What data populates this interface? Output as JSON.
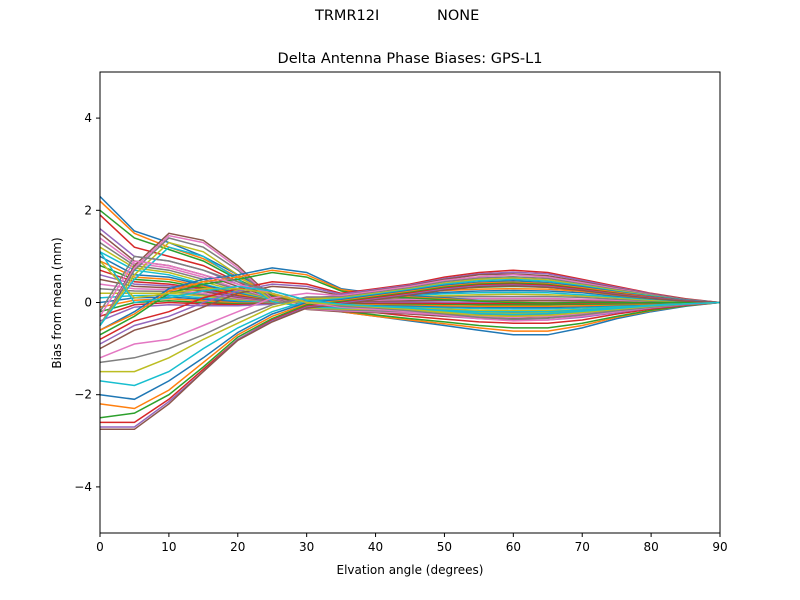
{
  "header": {
    "antenna": "TRMR12I",
    "radome": "NONE"
  },
  "colors": {
    "palette": [
      "#1f77b4",
      "#ff7f0e",
      "#2ca02c",
      "#d62728",
      "#9467bd",
      "#8c564b",
      "#e377c2",
      "#7f7f7f",
      "#bcbd22",
      "#17becf"
    ]
  },
  "chart_data": {
    "type": "line",
    "title": "Delta Antenna Phase Biases: GPS-L1",
    "xlabel": "Elvation angle (degrees)",
    "ylabel": "Bias from mean (mm)",
    "xlim": [
      0,
      90
    ],
    "ylim": [
      -5,
      5
    ],
    "xticks": [
      "0",
      "10",
      "20",
      "30",
      "40",
      "50",
      "60",
      "70",
      "80",
      "90"
    ],
    "yticks": [
      "−4",
      "−2",
      "0",
      "2",
      "4"
    ],
    "grid": false,
    "legend": "none",
    "x": [
      0,
      5,
      10,
      15,
      20,
      25,
      30,
      35,
      40,
      45,
      50,
      55,
      60,
      65,
      70,
      75,
      80,
      85,
      90
    ],
    "series": [
      {
        "values": [
          2.3,
          1.55,
          1.3,
          1.0,
          0.6,
          0.2,
          -0.05,
          -0.2,
          -0.3,
          -0.4,
          -0.5,
          -0.6,
          -0.7,
          -0.7,
          -0.55,
          -0.35,
          -0.2,
          -0.08,
          0.0
        ]
      },
      {
        "values": [
          2.2,
          1.5,
          1.2,
          0.95,
          0.55,
          0.18,
          -0.05,
          -0.2,
          -0.3,
          -0.38,
          -0.46,
          -0.55,
          -0.62,
          -0.62,
          -0.5,
          -0.32,
          -0.18,
          -0.07,
          0.0
        ]
      },
      {
        "values": [
          2.0,
          1.4,
          1.15,
          0.9,
          0.5,
          0.15,
          -0.05,
          -0.18,
          -0.27,
          -0.35,
          -0.42,
          -0.5,
          -0.55,
          -0.55,
          -0.45,
          -0.3,
          -0.17,
          -0.07,
          0.0
        ]
      },
      {
        "values": [
          1.9,
          1.2,
          1.0,
          0.8,
          0.45,
          0.12,
          -0.05,
          -0.15,
          -0.22,
          -0.3,
          -0.36,
          -0.42,
          -0.45,
          -0.45,
          -0.38,
          -0.25,
          -0.14,
          -0.06,
          0.0
        ]
      },
      {
        "values": [
          1.6,
          1.0,
          0.9,
          0.7,
          0.4,
          0.1,
          -0.05,
          -0.12,
          -0.18,
          -0.25,
          -0.3,
          -0.35,
          -0.38,
          -0.38,
          -0.32,
          -0.22,
          -0.12,
          -0.05,
          0.0
        ]
      },
      {
        "values": [
          1.5,
          0.9,
          0.8,
          0.6,
          0.35,
          0.1,
          -0.04,
          -0.1,
          -0.15,
          -0.2,
          -0.25,
          -0.3,
          -0.3,
          -0.3,
          -0.26,
          -0.18,
          -0.1,
          -0.04,
          0.0
        ]
      },
      {
        "values": [
          1.4,
          0.85,
          0.75,
          0.55,
          0.3,
          0.08,
          -0.04,
          -0.08,
          -0.12,
          -0.17,
          -0.2,
          -0.24,
          -0.26,
          -0.26,
          -0.22,
          -0.15,
          -0.08,
          -0.03,
          0.0
        ]
      },
      {
        "values": [
          1.3,
          0.8,
          0.7,
          0.5,
          0.28,
          0.06,
          -0.03,
          -0.06,
          -0.1,
          -0.14,
          -0.17,
          -0.2,
          -0.22,
          -0.22,
          -0.18,
          -0.12,
          -0.07,
          -0.03,
          0.0
        ]
      },
      {
        "values": [
          1.2,
          0.75,
          0.65,
          0.45,
          0.25,
          0.05,
          -0.03,
          -0.05,
          -0.08,
          -0.11,
          -0.14,
          -0.17,
          -0.18,
          -0.18,
          -0.15,
          -0.1,
          -0.06,
          -0.02,
          0.0
        ]
      },
      {
        "values": [
          1.1,
          0.7,
          0.6,
          0.4,
          0.22,
          0.04,
          -0.02,
          -0.04,
          -0.06,
          -0.09,
          -0.11,
          -0.13,
          -0.14,
          -0.14,
          -0.12,
          -0.08,
          -0.05,
          -0.02,
          0.0
        ]
      },
      {
        "values": [
          1.0,
          0.6,
          0.55,
          0.38,
          0.2,
          0.04,
          -0.02,
          -0.03,
          -0.05,
          -0.07,
          -0.09,
          -0.1,
          -0.11,
          -0.11,
          -0.09,
          -0.06,
          -0.04,
          -0.02,
          0.0
        ]
      },
      {
        "values": [
          0.9,
          0.55,
          0.5,
          0.35,
          0.18,
          0.03,
          -0.02,
          -0.02,
          -0.04,
          -0.05,
          -0.07,
          -0.08,
          -0.08,
          -0.08,
          -0.07,
          -0.05,
          -0.03,
          -0.01,
          0.0
        ]
      },
      {
        "values": [
          0.8,
          0.5,
          0.45,
          0.32,
          0.15,
          0.03,
          -0.01,
          -0.01,
          -0.02,
          -0.03,
          -0.04,
          -0.05,
          -0.05,
          -0.05,
          -0.04,
          -0.03,
          -0.02,
          -0.01,
          0.0
        ]
      },
      {
        "values": [
          0.7,
          0.45,
          0.4,
          0.3,
          0.14,
          0.02,
          -0.01,
          0.0,
          -0.01,
          -0.01,
          -0.02,
          -0.02,
          -0.02,
          -0.02,
          -0.02,
          -0.01,
          -0.01,
          0.0,
          0.0
        ]
      },
      {
        "values": [
          0.6,
          0.4,
          0.36,
          0.27,
          0.12,
          0.02,
          0.0,
          0.01,
          0.01,
          0.01,
          0.01,
          0.01,
          0.01,
          0.01,
          0.01,
          0.01,
          0.0,
          0.0,
          0.0
        ]
      },
      {
        "values": [
          0.5,
          0.35,
          0.32,
          0.24,
          0.1,
          0.01,
          0.0,
          0.02,
          0.03,
          0.04,
          0.05,
          0.05,
          0.05,
          0.05,
          0.04,
          0.03,
          0.02,
          0.01,
          0.0
        ]
      },
      {
        "values": [
          0.4,
          0.3,
          0.28,
          0.2,
          0.08,
          0.0,
          0.01,
          0.03,
          0.05,
          0.07,
          0.08,
          0.09,
          0.09,
          0.09,
          0.07,
          0.05,
          0.03,
          0.01,
          0.0
        ]
      },
      {
        "values": [
          0.3,
          0.25,
          0.24,
          0.17,
          0.06,
          0.0,
          0.02,
          0.05,
          0.07,
          0.1,
          0.12,
          0.13,
          0.13,
          0.13,
          0.11,
          0.07,
          0.04,
          0.02,
          0.0
        ]
      },
      {
        "values": [
          0.2,
          0.2,
          0.2,
          0.14,
          0.05,
          -0.01,
          0.03,
          0.06,
          0.09,
          0.12,
          0.15,
          0.17,
          0.18,
          0.17,
          0.14,
          0.1,
          0.05,
          0.02,
          0.0
        ]
      },
      {
        "values": [
          0.1,
          0.15,
          0.16,
          0.1,
          0.03,
          -0.01,
          0.04,
          0.08,
          0.11,
          0.15,
          0.19,
          0.21,
          0.22,
          0.21,
          0.17,
          0.12,
          0.07,
          0.03,
          0.0
        ]
      },
      {
        "values": [
          0.0,
          0.1,
          0.12,
          0.07,
          0.01,
          -0.02,
          0.05,
          0.09,
          0.13,
          0.18,
          0.22,
          0.25,
          0.26,
          0.25,
          0.21,
          0.14,
          0.08,
          0.03,
          0.0
        ]
      },
      {
        "values": [
          -0.1,
          0.05,
          0.08,
          0.04,
          -0.01,
          -0.02,
          0.06,
          0.11,
          0.15,
          0.2,
          0.26,
          0.29,
          0.3,
          0.29,
          0.24,
          0.16,
          0.09,
          0.04,
          0.0
        ]
      },
      {
        "values": [
          -0.2,
          0.0,
          0.04,
          0.0,
          -0.03,
          -0.03,
          0.07,
          0.12,
          0.17,
          0.23,
          0.29,
          0.33,
          0.35,
          0.33,
          0.27,
          0.19,
          0.11,
          0.04,
          0.0
        ]
      },
      {
        "values": [
          -0.3,
          -0.05,
          0.0,
          -0.03,
          -0.05,
          -0.03,
          0.08,
          0.14,
          0.19,
          0.26,
          0.32,
          0.37,
          0.39,
          0.37,
          0.31,
          0.21,
          0.12,
          0.05,
          0.0
        ]
      },
      {
        "values": [
          -0.4,
          -0.1,
          -0.05,
          -0.07,
          -0.07,
          -0.04,
          0.09,
          0.15,
          0.21,
          0.29,
          0.36,
          0.41,
          0.43,
          0.41,
          0.34,
          0.23,
          0.13,
          0.05,
          0.0
        ]
      },
      {
        "values": [
          -0.5,
          0.8,
          1.5,
          1.35,
          0.8,
          0.1,
          -0.15,
          -0.2,
          -0.22,
          -0.25,
          -0.3,
          -0.33,
          -0.35,
          -0.33,
          -0.28,
          -0.2,
          -0.11,
          -0.04,
          0.0
        ]
      },
      {
        "values": [
          -0.5,
          0.75,
          1.45,
          1.3,
          0.75,
          0.08,
          -0.14,
          -0.18,
          -0.2,
          -0.23,
          -0.27,
          -0.3,
          -0.32,
          -0.3,
          -0.25,
          -0.18,
          -0.1,
          -0.04,
          0.0
        ]
      },
      {
        "values": [
          -0.5,
          0.7,
          1.4,
          1.2,
          0.7,
          0.06,
          -0.13,
          -0.16,
          -0.18,
          -0.2,
          -0.24,
          -0.27,
          -0.28,
          -0.27,
          -0.22,
          -0.16,
          -0.09,
          -0.03,
          0.0
        ]
      },
      {
        "values": [
          -0.5,
          0.6,
          1.3,
          1.1,
          0.6,
          0.04,
          -0.12,
          -0.14,
          -0.15,
          -0.17,
          -0.2,
          -0.23,
          -0.24,
          -0.23,
          -0.19,
          -0.13,
          -0.07,
          -0.03,
          0.0
        ]
      },
      {
        "values": [
          -0.5,
          0.5,
          1.2,
          1.0,
          0.5,
          0.02,
          -0.1,
          -0.12,
          -0.13,
          -0.15,
          -0.17,
          -0.2,
          -0.2,
          -0.2,
          -0.16,
          -0.11,
          -0.06,
          -0.02,
          0.0
        ]
      },
      {
        "values": [
          -0.6,
          -0.2,
          0.3,
          0.5,
          0.6,
          0.75,
          0.65,
          0.3,
          0.2,
          0.15,
          0.1,
          0.05,
          0.02,
          0.0,
          0.0,
          0.0,
          0.0,
          0.0,
          0.0
        ]
      },
      {
        "values": [
          -0.6,
          -0.25,
          0.25,
          0.45,
          0.55,
          0.7,
          0.6,
          0.28,
          0.18,
          0.12,
          0.08,
          0.04,
          0.01,
          0.0,
          0.0,
          0.0,
          0.0,
          0.0,
          0.0
        ]
      },
      {
        "values": [
          -0.7,
          -0.3,
          0.2,
          0.4,
          0.5,
          0.65,
          0.55,
          0.25,
          0.15,
          0.1,
          0.06,
          0.03,
          0.0,
          -0.01,
          0.0,
          0.0,
          0.0,
          0.0,
          0.0
        ]
      },
      {
        "values": [
          -0.8,
          -0.4,
          -0.2,
          0.1,
          0.3,
          0.45,
          0.4,
          0.2,
          0.3,
          0.4,
          0.55,
          0.65,
          0.7,
          0.65,
          0.5,
          0.35,
          0.2,
          0.08,
          0.0
        ]
      },
      {
        "values": [
          -0.9,
          -0.5,
          -0.3,
          0.0,
          0.25,
          0.4,
          0.35,
          0.18,
          0.28,
          0.38,
          0.52,
          0.62,
          0.66,
          0.62,
          0.48,
          0.33,
          0.19,
          0.07,
          0.0
        ]
      },
      {
        "values": [
          -1.0,
          -0.6,
          -0.4,
          -0.1,
          0.2,
          0.35,
          0.3,
          0.15,
          0.26,
          0.36,
          0.5,
          0.6,
          0.62,
          0.58,
          0.45,
          0.31,
          0.18,
          0.07,
          0.0
        ]
      },
      {
        "values": [
          -1.2,
          -0.9,
          -0.8,
          -0.5,
          -0.2,
          0.1,
          0.2,
          0.15,
          0.25,
          0.35,
          0.48,
          0.56,
          0.6,
          0.55,
          0.43,
          0.3,
          0.17,
          0.06,
          0.0
        ]
      },
      {
        "values": [
          -1.3,
          -1.2,
          -1.0,
          -0.7,
          -0.35,
          -0.05,
          0.12,
          0.12,
          0.22,
          0.32,
          0.45,
          0.53,
          0.56,
          0.52,
          0.4,
          0.28,
          0.16,
          0.06,
          0.0
        ]
      },
      {
        "values": [
          -1.5,
          -1.5,
          -1.2,
          -0.8,
          -0.45,
          -0.1,
          0.08,
          0.1,
          0.2,
          0.3,
          0.42,
          0.5,
          0.53,
          0.49,
          0.38,
          0.26,
          0.15,
          0.05,
          0.0
        ]
      },
      {
        "values": [
          -1.7,
          -1.8,
          -1.5,
          -1.0,
          -0.55,
          -0.2,
          0.03,
          0.08,
          0.18,
          0.28,
          0.4,
          0.47,
          0.5,
          0.46,
          0.36,
          0.24,
          0.14,
          0.05,
          0.0
        ]
      },
      {
        "values": [
          -2.0,
          -2.1,
          -1.7,
          -1.2,
          -0.65,
          -0.25,
          0.0,
          0.06,
          0.16,
          0.26,
          0.37,
          0.44,
          0.47,
          0.43,
          0.34,
          0.23,
          0.13,
          0.05,
          0.0
        ]
      },
      {
        "values": [
          -2.2,
          -2.3,
          -1.9,
          -1.3,
          -0.7,
          -0.3,
          -0.03,
          0.04,
          0.14,
          0.24,
          0.35,
          0.42,
          0.44,
          0.41,
          0.32,
          0.22,
          0.12,
          0.04,
          0.0
        ]
      },
      {
        "values": [
          -2.5,
          -2.4,
          -2.0,
          -1.4,
          -0.75,
          -0.35,
          -0.05,
          0.02,
          0.12,
          0.22,
          0.33,
          0.4,
          0.42,
          0.39,
          0.3,
          0.2,
          0.11,
          0.04,
          0.0
        ]
      },
      {
        "values": [
          -2.6,
          -2.6,
          -2.1,
          -1.45,
          -0.8,
          -0.38,
          -0.08,
          0.0,
          0.1,
          0.2,
          0.31,
          0.38,
          0.4,
          0.37,
          0.29,
          0.19,
          0.11,
          0.04,
          0.0
        ]
      },
      {
        "values": [
          -2.7,
          -2.7,
          -2.15,
          -1.5,
          -0.8,
          -0.4,
          -0.1,
          -0.02,
          0.08,
          0.18,
          0.29,
          0.36,
          0.38,
          0.35,
          0.27,
          0.18,
          0.1,
          0.04,
          0.0
        ]
      },
      {
        "values": [
          -2.75,
          -2.75,
          -2.2,
          -1.5,
          -0.82,
          -0.42,
          -0.12,
          -0.04,
          0.06,
          0.16,
          0.27,
          0.34,
          0.36,
          0.33,
          0.26,
          0.17,
          0.09,
          0.03,
          0.0
        ]
      },
      {
        "values": [
          -0.3,
          0.9,
          0.8,
          0.6,
          0.4,
          0.2,
          0.0,
          -0.1,
          -0.15,
          -0.2,
          -0.28,
          -0.35,
          -0.4,
          -0.38,
          -0.3,
          -0.2,
          -0.11,
          -0.04,
          0.0
        ]
      },
      {
        "values": [
          -0.2,
          1.0,
          0.9,
          0.7,
          0.45,
          0.25,
          0.05,
          -0.08,
          -0.12,
          -0.18,
          -0.25,
          -0.32,
          -0.36,
          -0.34,
          -0.27,
          -0.18,
          -0.1,
          -0.04,
          0.0
        ]
      },
      {
        "values": [
          0.9,
          0.1,
          0.2,
          0.3,
          0.3,
          0.2,
          0.0,
          -0.05,
          -0.1,
          -0.15,
          -0.22,
          -0.28,
          -0.3,
          -0.28,
          -0.22,
          -0.15,
          -0.08,
          -0.03,
          0.0
        ]
      },
      {
        "values": [
          1.1,
          0.0,
          0.1,
          0.25,
          0.35,
          0.25,
          0.05,
          -0.04,
          -0.08,
          -0.12,
          -0.18,
          -0.24,
          -0.26,
          -0.24,
          -0.19,
          -0.13,
          -0.07,
          -0.03,
          0.0
        ]
      }
    ]
  }
}
